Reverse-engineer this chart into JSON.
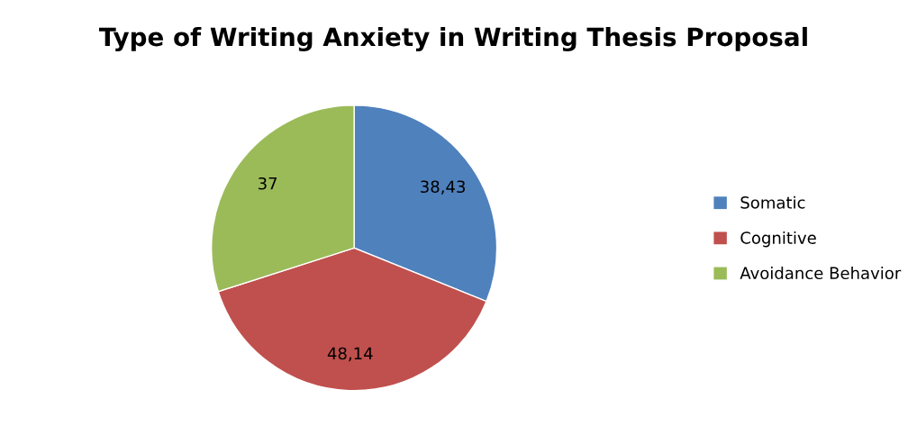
{
  "chart_data": {
    "type": "pie",
    "title": "Type of Writing Anxiety in Writing Thesis Proposal",
    "categories": [
      "Somatic",
      "Cognitive",
      "Avoidance Behavior"
    ],
    "values": [
      38.43,
      48.14,
      37
    ],
    "value_labels": [
      "38,43",
      "48,14",
      "37"
    ],
    "colors": [
      "#4f81bd",
      "#c0504d",
      "#9bbb59"
    ],
    "legend": "right"
  }
}
